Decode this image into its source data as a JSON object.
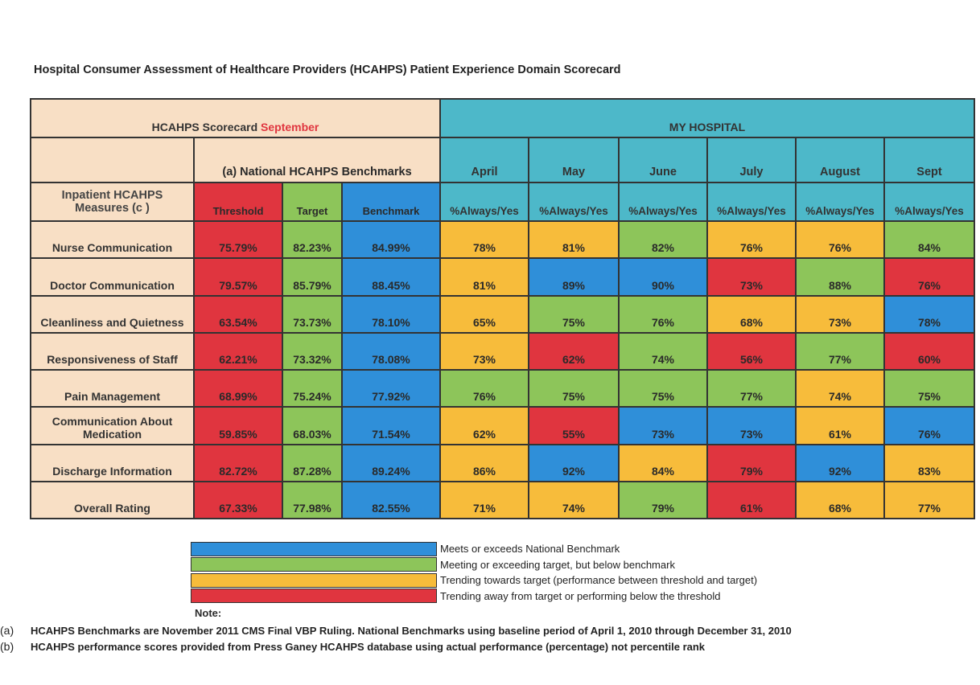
{
  "title": "Hospital Consumer Assessment of Healthcare Providers (HCAHPS) Patient Experience Domain Scorecard",
  "scorecard": {
    "label": "HCAHPS Scorecard",
    "month": "September",
    "hospital": "MY HOSPITAL",
    "benchmarks_header": "(a) National HCAHPS Benchmarks",
    "measures_header": "Inpatient HCAHPS Measures (c )",
    "bench_cols": [
      "Threshold",
      "Target",
      "Benchmark"
    ],
    "months": [
      "April",
      "May",
      "June",
      "July",
      "August",
      "Sept"
    ],
    "month_sub": "%Always/Yes",
    "rows": [
      {
        "measure": "Nurse Communication",
        "threshold": "75.79%",
        "target": "82.23%",
        "benchmark": "84.99%",
        "values": [
          "78%",
          "81%",
          "82%",
          "76%",
          "76%",
          "84%"
        ],
        "status": [
          "yellow",
          "yellow",
          "green",
          "yellow",
          "yellow",
          "green"
        ]
      },
      {
        "measure": "Doctor Communication",
        "threshold": "79.57%",
        "target": "85.79%",
        "benchmark": "88.45%",
        "values": [
          "81%",
          "89%",
          "90%",
          "73%",
          "88%",
          "76%"
        ],
        "status": [
          "yellow",
          "blue",
          "blue",
          "red",
          "green",
          "red"
        ]
      },
      {
        "measure": "Cleanliness and Quietness",
        "threshold": "63.54%",
        "target": "73.73%",
        "benchmark": "78.10%",
        "values": [
          "65%",
          "75%",
          "76%",
          "68%",
          "73%",
          "78%"
        ],
        "status": [
          "yellow",
          "green",
          "green",
          "yellow",
          "yellow",
          "blue"
        ]
      },
      {
        "measure": "Responsiveness of Staff",
        "threshold": "62.21%",
        "target": "73.32%",
        "benchmark": "78.08%",
        "values": [
          "73%",
          "62%",
          "74%",
          "56%",
          "77%",
          "60%"
        ],
        "status": [
          "yellow",
          "red",
          "green",
          "red",
          "green",
          "red"
        ]
      },
      {
        "measure": "Pain Management",
        "threshold": "68.99%",
        "target": "75.24%",
        "benchmark": "77.92%",
        "values": [
          "76%",
          "75%",
          "75%",
          "77%",
          "74%",
          "75%"
        ],
        "status": [
          "green",
          "green",
          "green",
          "green",
          "yellow",
          "green"
        ]
      },
      {
        "measure": "Communication About Medication",
        "threshold": "59.85%",
        "target": "68.03%",
        "benchmark": "71.54%",
        "values": [
          "62%",
          "55%",
          "73%",
          "73%",
          "61%",
          "76%"
        ],
        "status": [
          "yellow",
          "red",
          "blue",
          "blue",
          "yellow",
          "blue"
        ]
      },
      {
        "measure": "Discharge Information",
        "threshold": "82.72%",
        "target": "87.28%",
        "benchmark": "89.24%",
        "values": [
          "86%",
          "92%",
          "84%",
          "79%",
          "92%",
          "83%"
        ],
        "status": [
          "yellow",
          "blue",
          "yellow",
          "red",
          "blue",
          "yellow"
        ]
      },
      {
        "measure": "Overall Rating",
        "threshold": "67.33%",
        "target": "77.98%",
        "benchmark": "82.55%",
        "values": [
          "71%",
          "74%",
          "79%",
          "61%",
          "68%",
          "77%"
        ],
        "status": [
          "yellow",
          "yellow",
          "green",
          "red",
          "yellow",
          "yellow"
        ]
      }
    ]
  },
  "colors": {
    "red": "#e0353f",
    "green": "#8dc55a",
    "blue": "#2f8fd9",
    "yellow": "#f7bc3b",
    "beige": "#f8dfc5",
    "teal": "#4db8c9"
  },
  "legend": [
    {
      "status": "blue",
      "text": "Meets or exceeds National Benchmark"
    },
    {
      "status": "green",
      "text": "Meeting or exceeding target, but below benchmark"
    },
    {
      "status": "yellow",
      "text": "Trending towards target (performance between threshold and target)"
    },
    {
      "status": "red",
      "text": "Trending away from target or performing below the threshold"
    }
  ],
  "note": "Note:",
  "footnotes": [
    {
      "mark": "(a)",
      "text": "HCAHPS Benchmarks are November 2011 CMS Final VBP Ruling. National Benchmarks using baseline period of April 1, 2010 through December 31, 2010"
    },
    {
      "mark": "(b)",
      "text": "HCAHPS performance scores provided from Press Ganey HCAHPS database using actual performance (percentage) not percentile rank"
    }
  ]
}
